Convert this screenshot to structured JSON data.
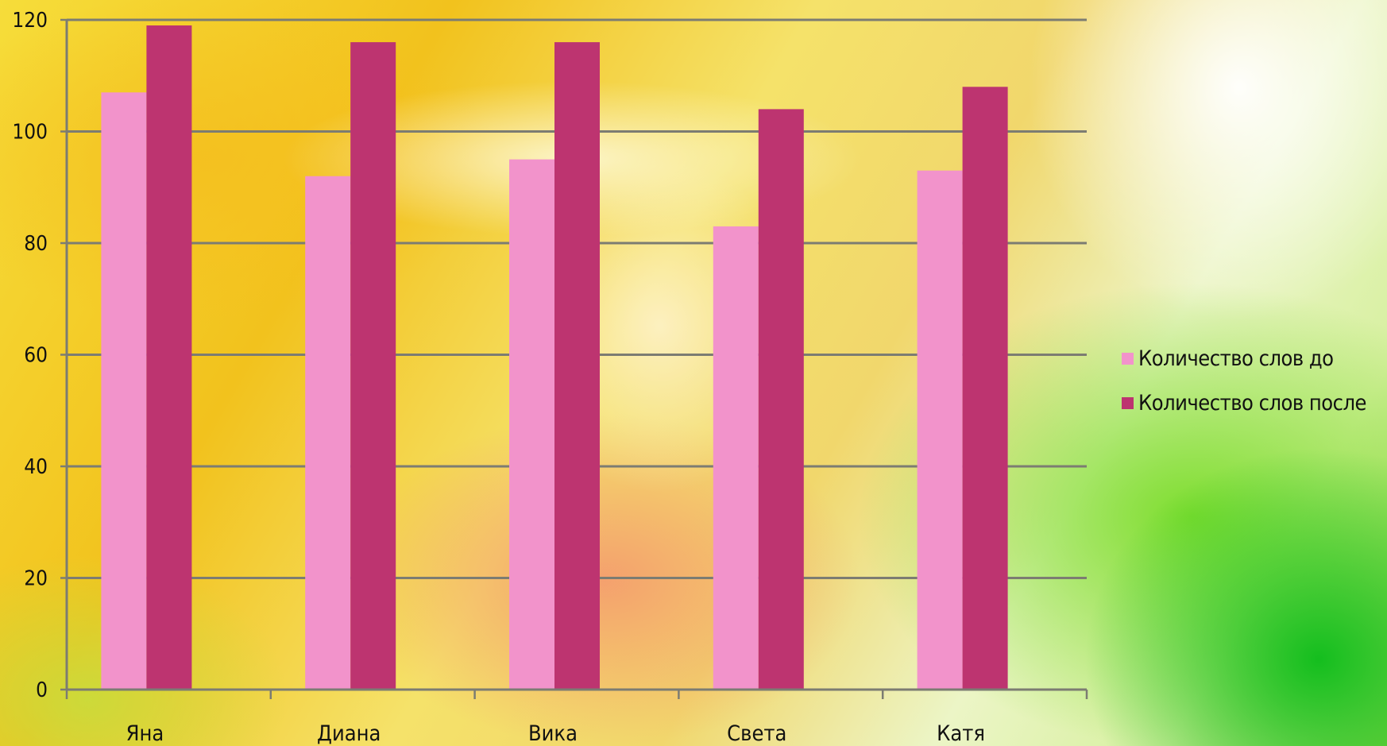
{
  "colors": {
    "series_before": "#f293cb",
    "series_after": "#bd3470",
    "gridline": "#7c7c72",
    "axis": "#7c7c72",
    "text": "#111111"
  },
  "chart_data": {
    "type": "bar",
    "title": "",
    "xlabel": "",
    "ylabel": "",
    "categories": [
      "Яна",
      "Диана",
      "Вика",
      "Света",
      "Катя"
    ],
    "series": [
      {
        "name": "Количество слов до",
        "values": [
          107,
          92,
          95,
          83,
          93
        ]
      },
      {
        "name": "Количество слов после",
        "values": [
          119,
          116,
          116,
          104,
          108
        ]
      }
    ],
    "ylim": [
      0,
      120
    ],
    "yticks": [
      "0",
      "20",
      "40",
      "60",
      "80",
      "100",
      "120"
    ],
    "grid": true,
    "legend_position": "right"
  }
}
